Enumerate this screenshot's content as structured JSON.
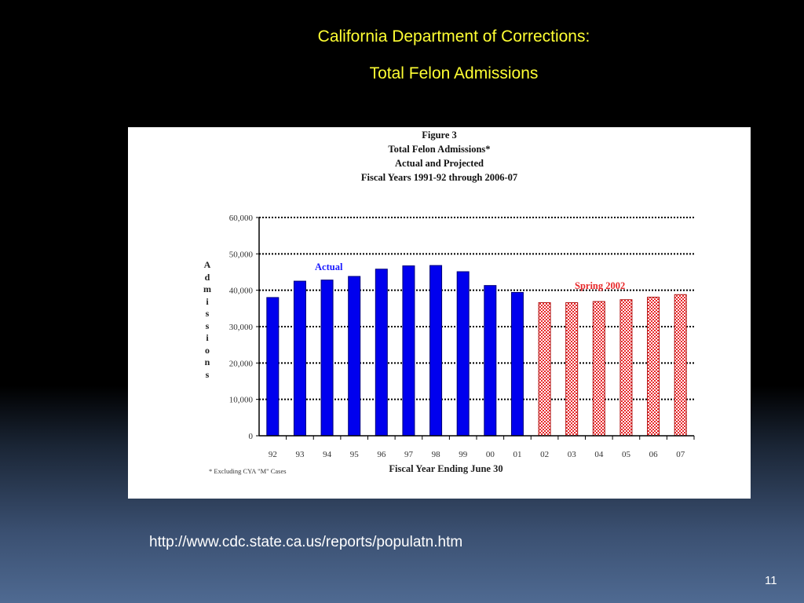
{
  "slide": {
    "title_line1": "California Department of Corrections:",
    "title_line2": "Total Felon Admissions",
    "url": "http://www.cdc.state.ca.us/reports/populatn.htm",
    "page_number": "11"
  },
  "figure": {
    "heading": [
      "Figure 3",
      "Total Felon Admissions*",
      "Actual and Projected",
      "Fiscal Years 1991-92 through 2006-07"
    ],
    "footnote": "* Excluding CYA \"M\" Cases"
  },
  "chart_data": {
    "type": "bar",
    "title": "Total Felon Admissions*",
    "xlabel": "Fiscal Year Ending June 30",
    "ylabel": "Admissions",
    "ylim": [
      0,
      60000
    ],
    "yticks": [
      "0",
      "10,000",
      "20,000",
      "30,000",
      "40,000",
      "50,000",
      "60,000"
    ],
    "categories": [
      "92",
      "93",
      "94",
      "95",
      "96",
      "97",
      "98",
      "99",
      "00",
      "01",
      "02",
      "03",
      "04",
      "05",
      "06",
      "07"
    ],
    "series": [
      {
        "name": "Actual",
        "color": "#0000ee",
        "values": [
          38000,
          42500,
          42800,
          43800,
          45800,
          46700,
          46800,
          45100,
          41300,
          39400,
          null,
          null,
          null,
          null,
          null,
          null
        ]
      },
      {
        "name": "Spring 2002",
        "color": "#e8282a",
        "pattern": "hatched",
        "values": [
          null,
          null,
          null,
          null,
          null,
          null,
          null,
          null,
          null,
          null,
          36600,
          36600,
          36900,
          37400,
          38100,
          38800
        ]
      }
    ],
    "grid": "dotted horizontal",
    "legend": "inline labels"
  }
}
